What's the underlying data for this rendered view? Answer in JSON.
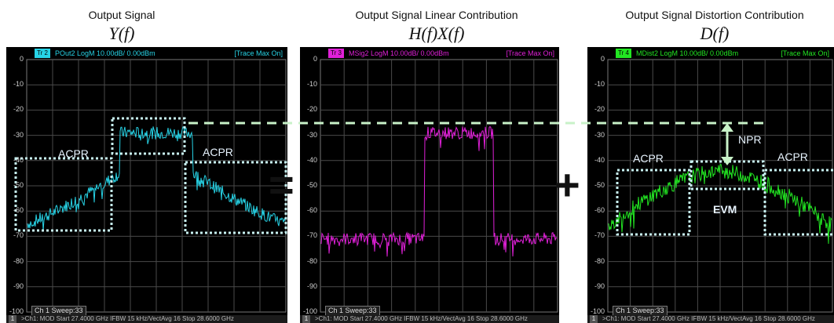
{
  "panels": [
    {
      "title": "Output Signal",
      "equation": "Y(f)",
      "trace_badge": "Tr 2",
      "measure": "POut2 LogM 10.00dB/ 0.00dBm",
      "trace_max": "[Trace Max On]",
      "sweep": "",
      "status": "",
      "color": "#27d3e6"
    },
    {
      "title": "Output Signal Linear Contribution",
      "equation": "H(f)X(f)",
      "trace_badge": "Tr 3",
      "measure": "MSig2 LogM 10.00dB/ 0.00dBm",
      "trace_max": "[Trace Max On]",
      "sweep": "Ch 1 Sweep:33",
      "status": ">Ch1: MOD  Start  27.4000 GHz  IFBW  15 kHz/VectAvg 16  Stop  28.6000 GHz",
      "color": "#e020d8"
    },
    {
      "title": "Output Signal Distortion Contribution",
      "equation": "D(f)",
      "trace_badge": "Tr 4",
      "measure": "MDist2 LogM 10.00dB/ 0.00dBm",
      "trace_max": "[Trace Max On]",
      "sweep": "Ch 1 Sweep:33",
      "status": ">Ch1: MOD  Start  27.4000 GHz  IFBW  15 kHz/VectAvg 16  Stop  28.6000 GHz",
      "color": "#22e622"
    }
  ],
  "panel0_sweep": "Ch 1 Sweep:33",
  "panel0_status": ">Ch1: MOD  Start  27.4000 GHz  IFBW  15 kHz/VectAvg 16  Stop  28.6000 GHz",
  "y_ticks": [
    "0",
    "-10",
    "-20",
    "-30",
    "-40",
    "-50",
    "-60",
    "-70",
    "-80",
    "-90",
    "-100"
  ],
  "status_num": "1",
  "labels": {
    "acpr": "ACPR",
    "npr": "NPR",
    "evm": "EVM"
  },
  "operators": {
    "equals": "=",
    "plus": "+"
  },
  "trace_levels_dbm": {
    "output_main": -29,
    "output_adjacent_peak": -45,
    "output_adjacent_edge": -65,
    "linear_main": -29,
    "linear_floor": -71,
    "distortion_main": -44,
    "distortion_edge": -66
  },
  "reference_line_dbm": -26
}
